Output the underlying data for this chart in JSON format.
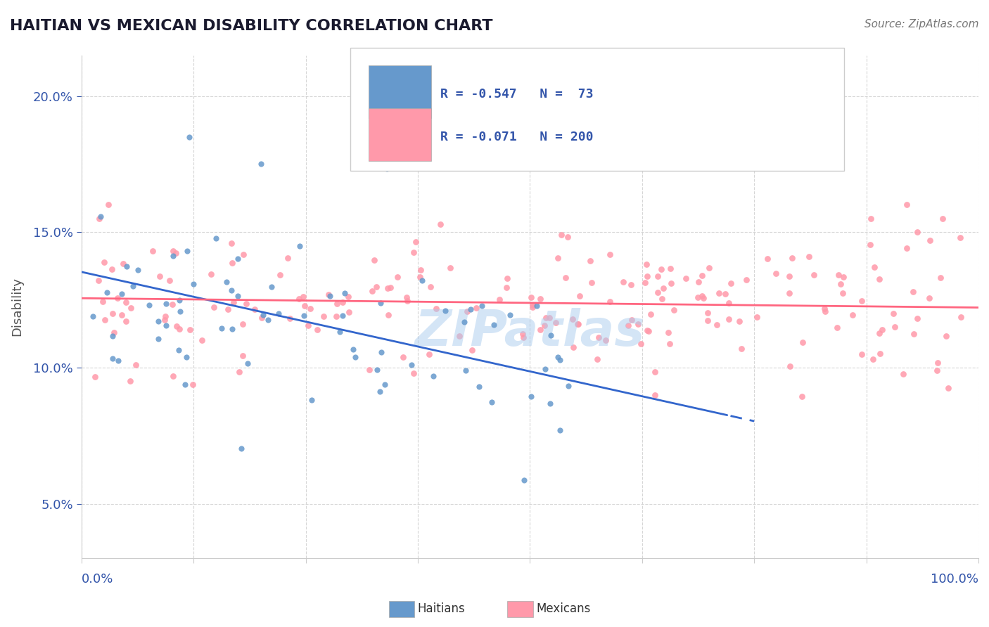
{
  "title": "HAITIAN VS MEXICAN DISABILITY CORRELATION CHART",
  "source": "Source: ZipAtlas.com",
  "ylabel": "Disability",
  "yaxis_labels": [
    "5.0%",
    "10.0%",
    "15.0%",
    "20.0%"
  ],
  "yaxis_values": [
    0.05,
    0.1,
    0.15,
    0.2
  ],
  "xlim": [
    0.0,
    1.0
  ],
  "ylim": [
    0.03,
    0.215
  ],
  "haitian_R": -0.547,
  "haitian_N": 73,
  "mexican_R": -0.071,
  "mexican_N": 200,
  "haitian_color": "#6699cc",
  "haitian_line_color": "#3366cc",
  "mexican_color": "#ff99aa",
  "mexican_line_color": "#ff6680",
  "watermark": "ZIPatlas",
  "watermark_color": "#aaccee",
  "title_color": "#1a1a2e",
  "legend_label_color": "#3355aa",
  "background_color": "#ffffff",
  "grid_color": "#cccccc"
}
